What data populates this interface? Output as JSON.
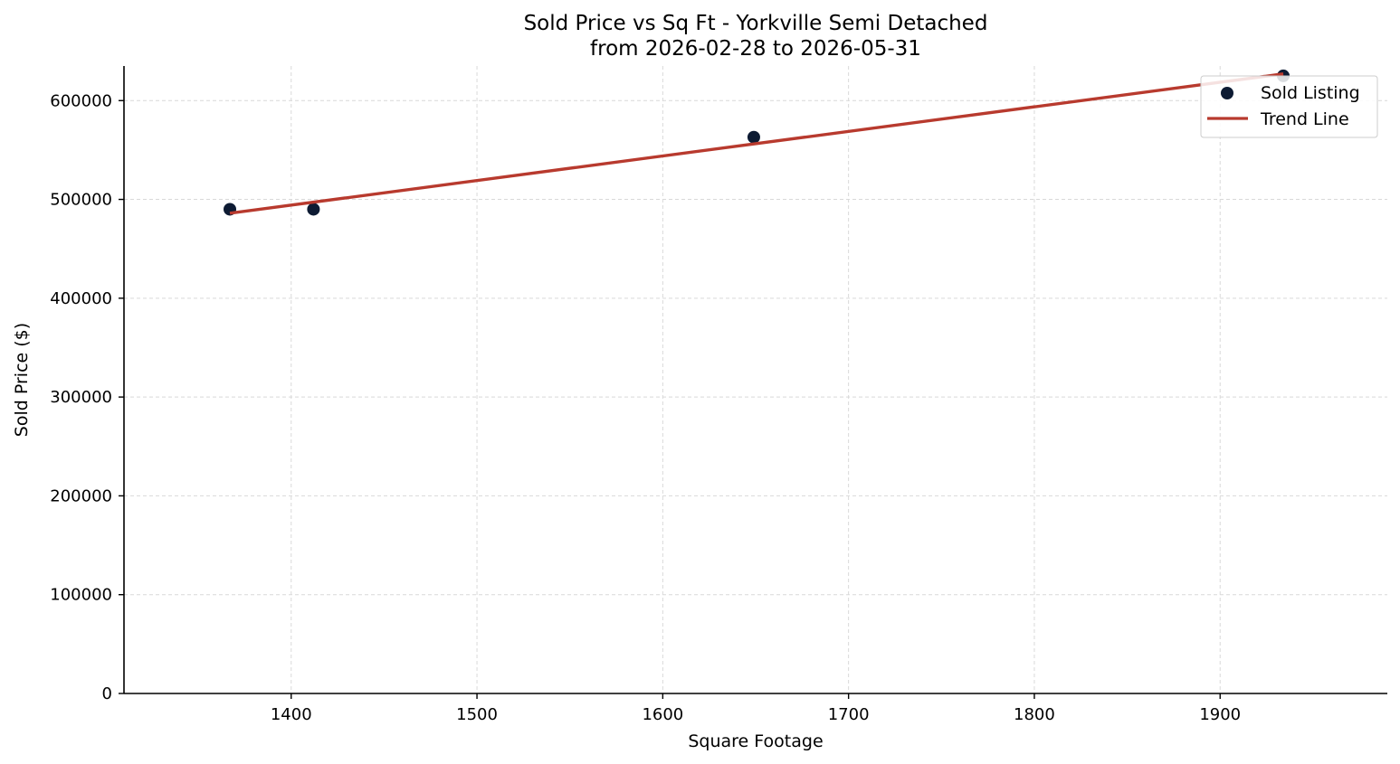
{
  "chart_data": {
    "type": "scatter",
    "title": "Sold Price vs Sq Ft - Yorkville Semi Detached",
    "subtitle": "from 2026-02-28 to 2026-05-31",
    "xlabel": "Square Footage",
    "ylabel": "Sold Price ($)",
    "xlim": [
      1310,
      1990
    ],
    "ylim": [
      0,
      635000
    ],
    "x_ticks": [
      1400,
      1500,
      1600,
      1700,
      1800,
      1900
    ],
    "y_ticks": [
      0,
      100000,
      200000,
      300000,
      400000,
      500000,
      600000
    ],
    "grid": true,
    "legend_position": "top-right",
    "series": [
      {
        "name": "Sold Listing",
        "kind": "scatter",
        "color": "#0d1b33",
        "points": [
          {
            "x": 1367,
            "y": 490000
          },
          {
            "x": 1412,
            "y": 490000
          },
          {
            "x": 1649,
            "y": 563000
          },
          {
            "x": 1934,
            "y": 625000
          }
        ]
      },
      {
        "name": "Trend Line",
        "kind": "line",
        "color": "#b83a2e",
        "points": [
          {
            "x": 1367,
            "y": 486000
          },
          {
            "x": 1934,
            "y": 627000
          }
        ]
      }
    ]
  }
}
